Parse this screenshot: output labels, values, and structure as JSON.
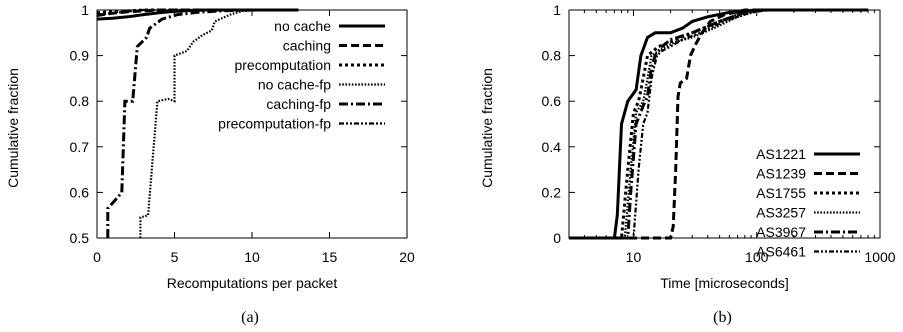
{
  "chart_data": [
    {
      "type": "line",
      "caption": "(a)",
      "xlabel": "Recomputations per packet",
      "ylabel": "Cumulative fraction",
      "xlim": [
        0,
        20
      ],
      "ylim": [
        0.5,
        1
      ],
      "x_ticks": [
        "0",
        "5",
        "10",
        "15",
        "20"
      ],
      "y_ticks": [
        "0.5",
        "0.6",
        "0.7",
        "0.8",
        "0.9",
        "1"
      ],
      "x_scale": "linear",
      "legend_position": "bottom-right",
      "series": [
        {
          "name": "no cache",
          "style": "solid",
          "width": 3,
          "points": [
            [
              0,
              0.98
            ],
            [
              1,
              0.982
            ],
            [
              2,
              0.985
            ],
            [
              3,
              0.99
            ],
            [
              4,
              0.994
            ],
            [
              5,
              0.997
            ],
            [
              6,
              0.999
            ],
            [
              7,
              1.0
            ],
            [
              13,
              1.0
            ]
          ]
        },
        {
          "name": "caching",
          "style": "dashed",
          "width": 3,
          "points": [
            [
              0,
              0.988
            ],
            [
              1,
              0.993
            ],
            [
              2,
              0.996
            ],
            [
              3,
              0.998
            ],
            [
              4,
              1.0
            ],
            [
              13,
              1.0
            ]
          ]
        },
        {
          "name": "precomputation",
          "style": "dotted",
          "width": 3,
          "points": [
            [
              0,
              0.994
            ],
            [
              1,
              0.996
            ],
            [
              2,
              0.998
            ],
            [
              3,
              1.0
            ],
            [
              13,
              1.0
            ]
          ]
        },
        {
          "name": "no cache-fp",
          "style": "finedot",
          "width": 2.2,
          "points": [
            [
              2.8,
              0.5
            ],
            [
              2.8,
              0.545
            ],
            [
              3.3,
              0.55
            ],
            [
              3.9,
              0.8
            ],
            [
              4.6,
              0.805
            ],
            [
              5,
              0.8
            ],
            [
              5,
              0.9
            ],
            [
              5.4,
              0.905
            ],
            [
              5.8,
              0.91
            ],
            [
              6.2,
              0.93
            ],
            [
              6.8,
              0.945
            ],
            [
              7.4,
              0.955
            ],
            [
              7.6,
              0.975
            ],
            [
              8.6,
              0.99
            ],
            [
              9.4,
              0.998
            ],
            [
              10.2,
              0.999
            ],
            [
              13,
              1.0
            ]
          ]
        },
        {
          "name": "caching-fp",
          "style": "dashdot",
          "width": 3,
          "points": [
            [
              0.7,
              0.5
            ],
            [
              0.7,
              0.565
            ],
            [
              1.1,
              0.58
            ],
            [
              1.6,
              0.6
            ],
            [
              1.8,
              0.8
            ],
            [
              2.3,
              0.8
            ],
            [
              2.6,
              0.92
            ],
            [
              3.2,
              0.94
            ],
            [
              3.4,
              0.96
            ],
            [
              4.2,
              0.98
            ],
            [
              5.2,
              0.99
            ],
            [
              6.5,
              0.995
            ],
            [
              8,
              0.998
            ],
            [
              10,
              1.0
            ],
            [
              13,
              1.0
            ]
          ]
        },
        {
          "name": "precomputation-fp",
          "style": "dashdotdot",
          "width": 2.2,
          "points": [
            [
              0,
              0.99
            ],
            [
              1,
              0.993
            ],
            [
              2,
              0.997
            ],
            [
              3,
              1.0
            ],
            [
              13,
              1.0
            ]
          ]
        }
      ]
    },
    {
      "type": "line",
      "caption": "(b)",
      "xlabel": "Time [microseconds]",
      "ylabel": "Cumulative fraction",
      "xlim": [
        3,
        1000
      ],
      "ylim": [
        0,
        1
      ],
      "x_ticks": [
        "10",
        "100",
        "1000"
      ],
      "x_tick_values": [
        10,
        100,
        1000
      ],
      "y_ticks": [
        "0",
        "0.2",
        "0.4",
        "0.6",
        "0.8",
        "1"
      ],
      "x_scale": "log",
      "legend_position": "right",
      "series": [
        {
          "name": "AS1221",
          "style": "solid",
          "width": 3,
          "points": [
            [
              3,
              0
            ],
            [
              7,
              0
            ],
            [
              7.4,
              0.1
            ],
            [
              8,
              0.5
            ],
            [
              9,
              0.6
            ],
            [
              10.5,
              0.65
            ],
            [
              11.5,
              0.8
            ],
            [
              13,
              0.88
            ],
            [
              15,
              0.9
            ],
            [
              20,
              0.9
            ],
            [
              25,
              0.92
            ],
            [
              30,
              0.95
            ],
            [
              40,
              0.97
            ],
            [
              60,
              0.99
            ],
            [
              100,
              1.0
            ],
            [
              800,
              1.0
            ]
          ]
        },
        {
          "name": "AS1239",
          "style": "dashed",
          "width": 3,
          "points": [
            [
              3,
              0
            ],
            [
              20,
              0
            ],
            [
              21,
              0.05
            ],
            [
              22,
              0.3
            ],
            [
              23,
              0.62
            ],
            [
              24,
              0.68
            ],
            [
              27,
              0.7
            ],
            [
              29,
              0.8
            ],
            [
              32,
              0.85
            ],
            [
              36,
              0.9
            ],
            [
              42,
              0.95
            ],
            [
              55,
              0.98
            ],
            [
              80,
              1.0
            ],
            [
              800,
              1.0
            ]
          ]
        },
        {
          "name": "AS1755",
          "style": "dotted",
          "width": 3,
          "points": [
            [
              3,
              0
            ],
            [
              8,
              0
            ],
            [
              9,
              0.3
            ],
            [
              10,
              0.55
            ],
            [
              11,
              0.6
            ],
            [
              12,
              0.7
            ],
            [
              13,
              0.8
            ],
            [
              16,
              0.84
            ],
            [
              20,
              0.86
            ],
            [
              30,
              0.9
            ],
            [
              50,
              0.95
            ],
            [
              80,
              0.99
            ],
            [
              120,
              1.0
            ],
            [
              800,
              1.0
            ]
          ]
        },
        {
          "name": "AS3257",
          "style": "finedot",
          "width": 2.2,
          "points": [
            [
              3,
              0
            ],
            [
              8.5,
              0
            ],
            [
              9.5,
              0.3
            ],
            [
              10.5,
              0.55
            ],
            [
              12,
              0.6
            ],
            [
              13,
              0.7
            ],
            [
              14,
              0.8
            ],
            [
              17,
              0.83
            ],
            [
              22,
              0.86
            ],
            [
              30,
              0.88
            ],
            [
              45,
              0.92
            ],
            [
              70,
              0.97
            ],
            [
              110,
              1.0
            ],
            [
              800,
              1.0
            ]
          ]
        },
        {
          "name": "AS3967",
          "style": "dashdot",
          "width": 3,
          "points": [
            [
              3,
              0
            ],
            [
              9,
              0
            ],
            [
              9.5,
              0.2
            ],
            [
              10.5,
              0.5
            ],
            [
              12,
              0.58
            ],
            [
              13,
              0.62
            ],
            [
              14,
              0.75
            ],
            [
              15,
              0.8
            ],
            [
              17,
              0.84
            ],
            [
              20,
              0.87
            ],
            [
              30,
              0.9
            ],
            [
              50,
              0.95
            ],
            [
              80,
              0.99
            ],
            [
              110,
              1.0
            ],
            [
              800,
              1.0
            ]
          ]
        },
        {
          "name": "AS6461",
          "style": "dashdotdot",
          "width": 2.2,
          "points": [
            [
              3,
              0
            ],
            [
              10,
              0
            ],
            [
              11,
              0.3
            ],
            [
              12,
              0.5
            ],
            [
              13,
              0.55
            ],
            [
              14,
              0.7
            ],
            [
              15.5,
              0.8
            ],
            [
              17,
              0.82
            ],
            [
              20,
              0.84
            ],
            [
              25,
              0.87
            ],
            [
              35,
              0.9
            ],
            [
              55,
              0.95
            ],
            [
              90,
              0.99
            ],
            [
              130,
              1.0
            ],
            [
              800,
              1.0
            ]
          ]
        }
      ]
    }
  ]
}
